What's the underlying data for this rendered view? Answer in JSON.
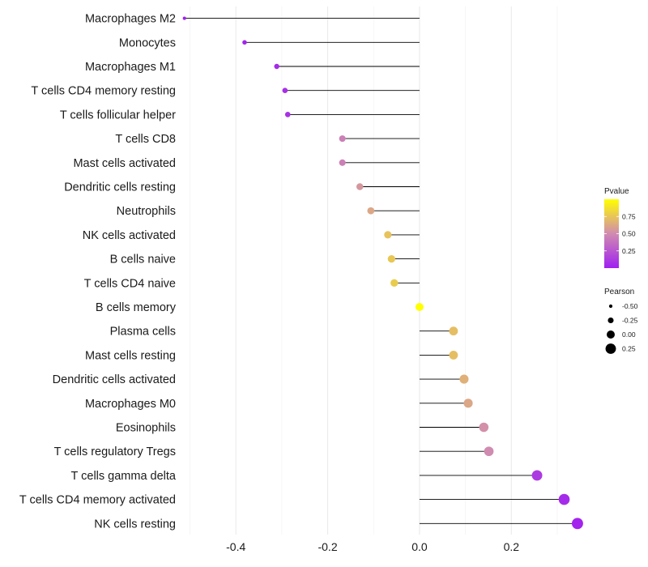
{
  "chart_data": {
    "type": "lollipop",
    "title": "",
    "xlabel": "",
    "ylabel": "",
    "xlim": [
      -0.515,
      0.36
    ],
    "x_ticks": [
      -0.4,
      -0.2,
      0.0,
      0.2
    ],
    "x_tick_labels": [
      "-0.4",
      "-0.2",
      "0.0",
      "0.2"
    ],
    "grid": true,
    "baseline": 0,
    "categories": [
      "Macrophages M2",
      "Monocytes",
      "Macrophages M1",
      "T cells CD4 memory resting",
      "T cells follicular helper",
      "T cells CD8",
      "Mast cells activated",
      "Dendritic cells resting",
      "Neutrophils",
      "NK cells activated",
      "B cells naive",
      "T cells CD4 naive",
      "B cells memory",
      "Plasma cells",
      "Mast cells resting",
      "Dendritic cells activated",
      "Macrophages M0",
      "Eosinophils",
      "T cells regulatory  Tregs ",
      "T cells gamma delta",
      "T cells CD4 memory activated",
      "NK cells resting"
    ],
    "pearson": [
      -0.512,
      -0.381,
      -0.311,
      -0.293,
      -0.287,
      -0.168,
      -0.168,
      -0.13,
      -0.106,
      -0.069,
      -0.061,
      -0.055,
      0.0,
      0.074,
      0.074,
      0.097,
      0.106,
      0.14,
      0.151,
      0.256,
      0.315,
      0.344
    ],
    "pvalue": [
      0.0,
      0.02,
      0.05,
      0.07,
      0.08,
      0.45,
      0.45,
      0.55,
      0.62,
      0.74,
      0.76,
      0.78,
      1.0,
      0.72,
      0.72,
      0.66,
      0.62,
      0.52,
      0.5,
      0.12,
      0.05,
      0.02
    ],
    "legend": {
      "position": "right",
      "color_title": "Pvalue",
      "color_ticks": [
        0.25,
        0.5,
        0.75
      ],
      "color_tick_labels": [
        "0.25",
        "0.50",
        "0.75"
      ],
      "color_range": [
        0.0,
        1.0
      ],
      "color_low": "#A020F0",
      "color_high": "#FFFF00",
      "size_title": "Pearson",
      "size_values": [
        -0.5,
        -0.25,
        0.0,
        0.25
      ],
      "size_labels": [
        "-0.50",
        "-0.25",
        "0.00",
        "0.25"
      ]
    },
    "colors": {
      "stem": "#000000",
      "grid": "#EBEBEB",
      "text": "#1A1A1A"
    }
  }
}
